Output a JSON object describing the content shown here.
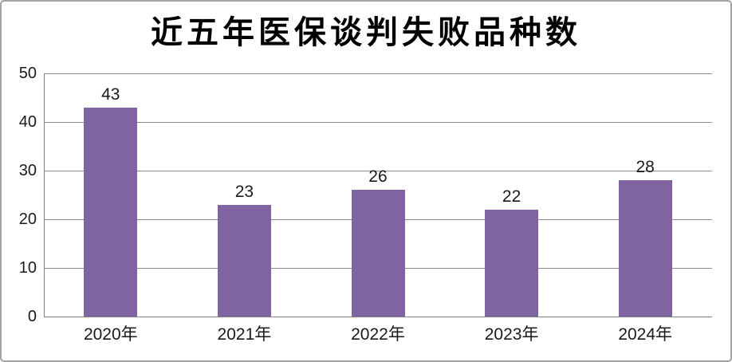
{
  "chart_data": {
    "type": "bar",
    "title": "近五年医保谈判失败品种数",
    "categories": [
      "2020年",
      "2021年",
      "2022年",
      "2023年",
      "2024年"
    ],
    "values": [
      43,
      23,
      26,
      22,
      28
    ],
    "xlabel": "",
    "ylabel": "",
    "ylim": [
      0,
      50
    ],
    "yticks": [
      0,
      10,
      20,
      30,
      40,
      50
    ],
    "grid": "horizontal",
    "legend_position": "none",
    "data_labels_shown": true
  },
  "colors": {
    "bar": "#8064A2",
    "gridline": "#8c8c8c",
    "axis": "#808080",
    "frame": "#a3a3a3",
    "background": "#ffffff",
    "text": "#1a1a1a",
    "title_text": "#000000"
  }
}
